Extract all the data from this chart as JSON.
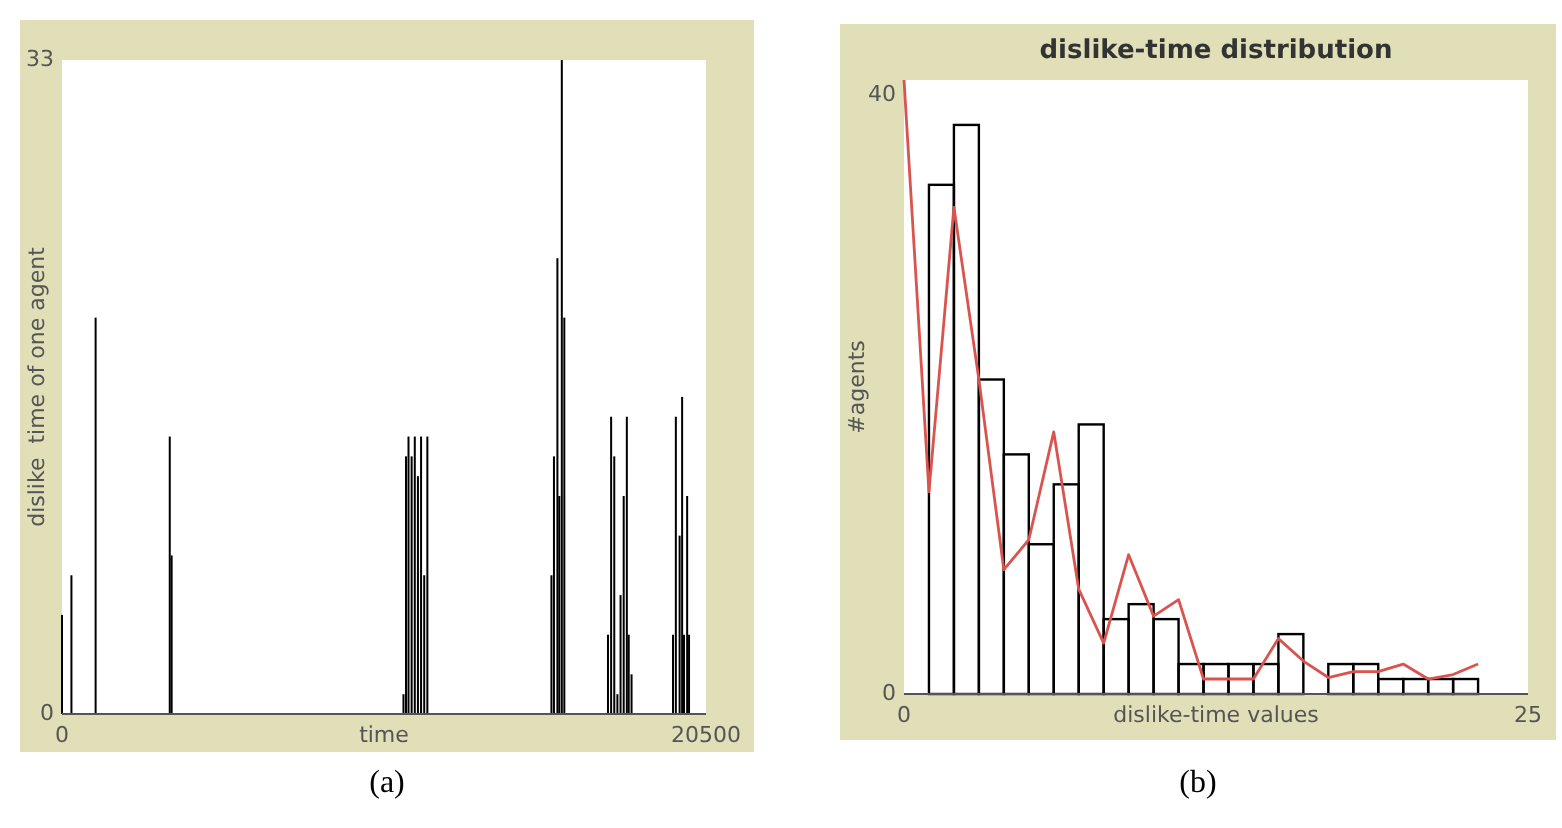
{
  "chart_data": [
    {
      "type": "bar",
      "xlabel": "time",
      "ylabel": "dislike  time of one agent",
      "annotations": [
        "(a)"
      ],
      "color": "#000000",
      "xlim": [
        0,
        20500
      ],
      "ylim": [
        0,
        33
      ],
      "xticks": [
        0,
        20500
      ],
      "yticks": [
        0,
        33
      ],
      "x": [
        0,
        300,
        1070,
        3430,
        3490,
        10870,
        10950,
        11030,
        11130,
        11230,
        11330,
        11430,
        11530,
        11630,
        15580,
        15660,
        15770,
        15830,
        15910,
        15990,
        17380,
        17480,
        17580,
        17680,
        17780,
        17880,
        17980,
        18040,
        18130,
        19450,
        19540,
        19660,
        19740,
        19800,
        19900,
        19960
      ],
      "values": [
        5,
        7,
        20,
        14,
        8,
        1,
        13,
        14,
        13,
        14,
        12,
        14,
        7,
        14,
        7,
        13,
        23,
        11,
        33,
        20,
        4,
        15,
        13,
        1,
        6,
        11,
        15,
        4,
        2,
        4,
        15,
        9,
        16,
        4,
        11,
        4
      ]
    },
    {
      "type": "histogram",
      "title": "dislike-time distribution",
      "xlabel": "dislike-time values",
      "ylabel": "#agents",
      "annotations": [
        "(b)"
      ],
      "xlim": [
        0,
        25
      ],
      "ylim": [
        0,
        41
      ],
      "xticks": [
        0,
        25
      ],
      "yticks": [
        0,
        40
      ],
      "series": [
        {
          "type": "histogram",
          "color": "#000000",
          "bins": [
            1,
            2,
            3,
            4,
            5,
            6,
            7,
            8,
            9,
            10,
            11,
            12,
            13,
            14,
            15,
            16,
            17,
            18,
            19,
            20,
            21,
            22,
            23
          ],
          "values": [
            34,
            38,
            21,
            16,
            10,
            14,
            18,
            5,
            6,
            5,
            2,
            2,
            2,
            2,
            4,
            0,
            2,
            2,
            1,
            1,
            1,
            1
          ]
        },
        {
          "type": "line",
          "color": "#d9534f",
          "x": [
            0,
            1,
            2,
            3,
            4,
            5,
            6,
            7,
            8,
            9,
            10,
            11,
            12,
            13,
            14,
            15,
            16,
            17,
            18,
            19,
            20,
            21,
            22,
            23
          ],
          "values": [
            41,
            13.5,
            32.5,
            21,
            8.3,
            10.3,
            17.5,
            7,
            3.4,
            9.3,
            5.2,
            6.3,
            1,
            1,
            1,
            3.7,
            2.2,
            1.1,
            1.5,
            1.5,
            2,
            1,
            1.3,
            2
          ]
        }
      ]
    }
  ]
}
